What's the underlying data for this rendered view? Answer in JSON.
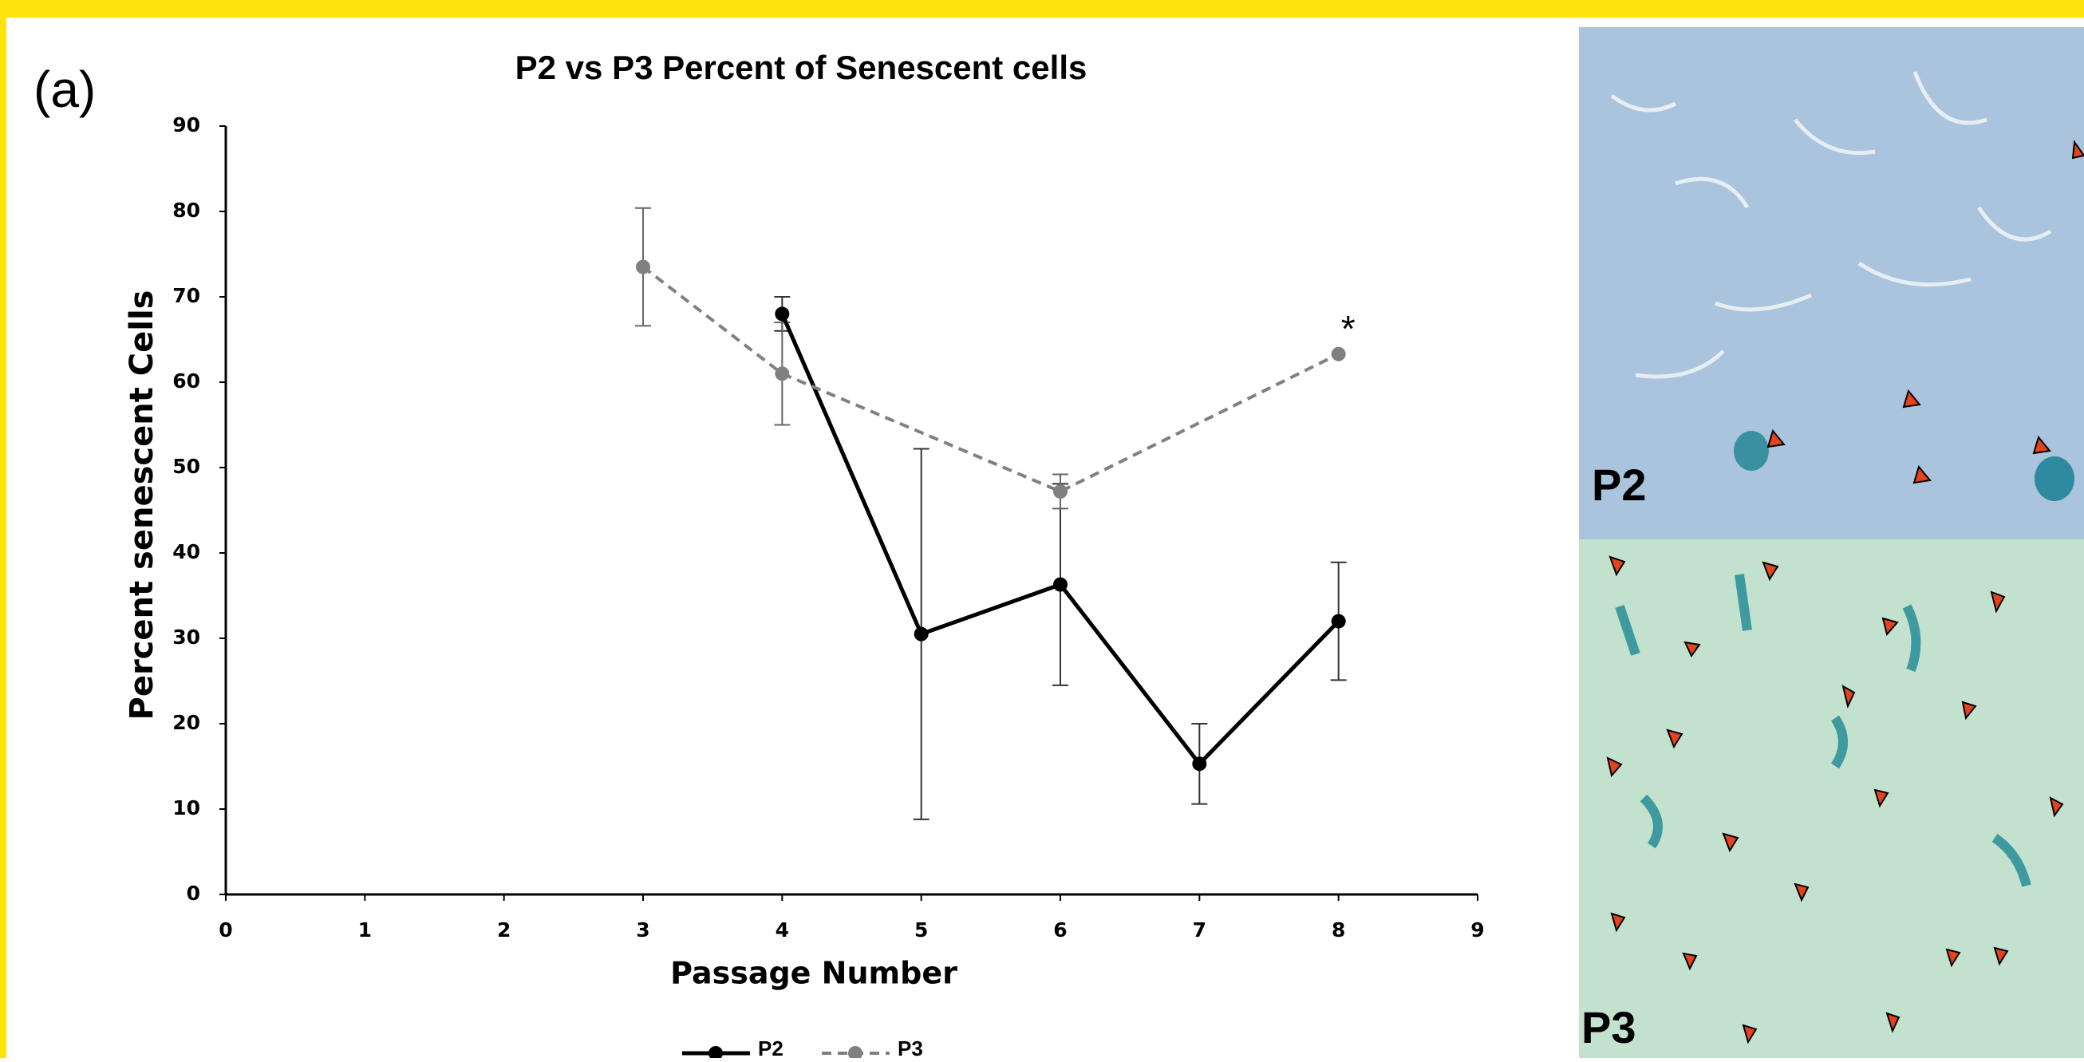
{
  "chart_data": {
    "type": "line",
    "panel_label": "(a)",
    "title": "P2 vs P3 Percent of Senescent cells",
    "x_label": "Passage Number",
    "y_label": "Percent  senescent Cells",
    "annotation": "*",
    "xlim": [
      0,
      9
    ],
    "xticks": [
      0,
      1,
      2,
      3,
      4,
      5,
      6,
      7,
      8,
      9
    ],
    "ylim": [
      0,
      90
    ],
    "yticks": [
      0,
      10,
      20,
      30,
      40,
      50,
      60,
      70,
      80,
      90
    ],
    "series": [
      {
        "name": "P2",
        "color": "#000000",
        "dashed": false,
        "x": [
          4,
          5,
          6,
          7,
          8
        ],
        "values": [
          68,
          30.5,
          36.3,
          15.3,
          32
        ],
        "errors": [
          2,
          21.7,
          11.8,
          4.7,
          6.9
        ]
      },
      {
        "name": "P3",
        "color": "#808080",
        "dashed": true,
        "x": [
          3,
          4,
          6,
          8
        ],
        "values": [
          73.5,
          61,
          47.2,
          63.3
        ],
        "errors": [
          6.9,
          6,
          2,
          null
        ]
      }
    ]
  },
  "images": [
    {
      "label": "P2"
    },
    {
      "label": "P3"
    }
  ]
}
